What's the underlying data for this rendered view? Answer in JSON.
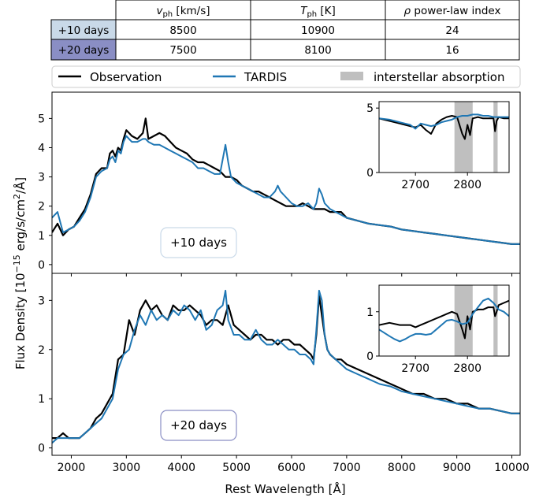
{
  "table": {
    "headers": [
      "",
      "v_ph [km/s]",
      "T_ph [K]",
      "ρ power-law index"
    ],
    "header_parts": [
      {
        "main": "v",
        "sub": "ph",
        "rest": " [km/s]"
      },
      {
        "main": "T",
        "sub": "ph",
        "rest": " [K]"
      },
      {
        "main": "ρ",
        "sub": "",
        "rest": " power-law index"
      }
    ],
    "rows": [
      {
        "label": "+10 days",
        "values": [
          "8500",
          "10900",
          "24"
        ],
        "color": "#c9d9e8"
      },
      {
        "label": "+20 days",
        "values": [
          "7500",
          "8100",
          "16"
        ],
        "color": "#8a8ec4"
      }
    ]
  },
  "legend": {
    "observation": "Observation",
    "tardis": "TARDIS",
    "absorption": "interstellar absorption"
  },
  "colors": {
    "observation": "#000000",
    "tardis": "#1f77b4",
    "absorption": "#bfbfbf"
  },
  "chart_data": [
    {
      "type": "line",
      "panel": "+10 days",
      "xlabel": "Rest Wavelength [Å]",
      "ylabel": "Flux Density [10^-15 erg/s/cm^2/Å]",
      "xlim": [
        1650,
        10150
      ],
      "ylim": [
        -0.3,
        5.9
      ],
      "xticks": [
        2000,
        3000,
        4000,
        5000,
        6000,
        7000,
        8000,
        9000,
        10000
      ],
      "yticks": [
        0,
        1,
        2,
        3,
        4,
        5
      ],
      "annotation": "+10 days",
      "series": [
        {
          "name": "Observation",
          "x": [
            1650,
            1750,
            1850,
            1950,
            2050,
            2150,
            2250,
            2350,
            2450,
            2550,
            2650,
            2700,
            2750,
            2800,
            2850,
            2900,
            2950,
            3000,
            3050,
            3100,
            3200,
            3300,
            3350,
            3400,
            3500,
            3600,
            3700,
            3800,
            3900,
            4000,
            4100,
            4200,
            4300,
            4400,
            4500,
            4600,
            4700,
            4800,
            4900,
            5000,
            5100,
            5200,
            5300,
            5400,
            5500,
            5600,
            5700,
            5800,
            5900,
            6000,
            6100,
            6200,
            6300,
            6400,
            6500,
            6600,
            6700,
            6800,
            6900,
            7000,
            7200,
            7400,
            7600,
            7800,
            8000,
            8200,
            8400,
            8600,
            8800,
            9000,
            9200,
            9400,
            9600,
            9800,
            10000,
            10150
          ],
          "y": [
            1.1,
            1.4,
            1.0,
            1.2,
            1.3,
            1.6,
            1.9,
            2.4,
            3.1,
            3.3,
            3.3,
            3.8,
            3.9,
            3.7,
            4.0,
            3.9,
            4.3,
            4.6,
            4.5,
            4.4,
            4.3,
            4.5,
            5.0,
            4.3,
            4.4,
            4.5,
            4.4,
            4.2,
            4.0,
            3.9,
            3.8,
            3.6,
            3.5,
            3.5,
            3.4,
            3.3,
            3.2,
            3.0,
            3.0,
            2.9,
            2.7,
            2.6,
            2.5,
            2.5,
            2.4,
            2.3,
            2.2,
            2.1,
            2.0,
            2.0,
            2.0,
            2.1,
            2.0,
            1.9,
            1.9,
            1.9,
            1.8,
            1.8,
            1.8,
            1.6,
            1.5,
            1.4,
            1.35,
            1.3,
            1.2,
            1.15,
            1.1,
            1.05,
            1.0,
            0.95,
            0.9,
            0.85,
            0.8,
            0.75,
            0.7,
            0.7
          ]
        },
        {
          "name": "TARDIS",
          "x": [
            1650,
            1750,
            1850,
            1950,
            2050,
            2150,
            2250,
            2350,
            2450,
            2550,
            2650,
            2700,
            2750,
            2800,
            2850,
            2900,
            2950,
            3000,
            3050,
            3100,
            3200,
            3300,
            3350,
            3400,
            3500,
            3600,
            3700,
            3800,
            3900,
            4000,
            4100,
            4200,
            4300,
            4400,
            4500,
            4600,
            4700,
            4750,
            4800,
            4850,
            4900,
            5000,
            5100,
            5200,
            5300,
            5400,
            5500,
            5600,
            5700,
            5750,
            5800,
            5900,
            6000,
            6100,
            6200,
            6300,
            6400,
            6450,
            6500,
            6550,
            6600,
            6700,
            6800,
            6900,
            7000,
            7200,
            7400,
            7600,
            7800,
            8000,
            8200,
            8400,
            8600,
            8800,
            9000,
            9200,
            9400,
            9600,
            9800,
            10000,
            10150
          ],
          "y": [
            1.6,
            1.8,
            1.1,
            1.2,
            1.3,
            1.5,
            1.8,
            2.3,
            3.0,
            3.2,
            3.3,
            3.6,
            3.7,
            3.5,
            3.9,
            3.8,
            4.2,
            4.4,
            4.3,
            4.2,
            4.2,
            4.3,
            4.3,
            4.2,
            4.1,
            4.1,
            4.0,
            3.9,
            3.8,
            3.7,
            3.6,
            3.5,
            3.3,
            3.3,
            3.2,
            3.1,
            3.1,
            3.6,
            4.1,
            3.5,
            3.0,
            2.8,
            2.7,
            2.6,
            2.5,
            2.4,
            2.3,
            2.3,
            2.5,
            2.7,
            2.5,
            2.3,
            2.1,
            2.0,
            2.0,
            2.1,
            1.9,
            2.1,
            2.6,
            2.4,
            2.1,
            1.9,
            1.8,
            1.7,
            1.6,
            1.5,
            1.4,
            1.35,
            1.3,
            1.2,
            1.15,
            1.1,
            1.05,
            1.0,
            0.95,
            0.9,
            0.85,
            0.8,
            0.75,
            0.7,
            0.7
          ]
        }
      ],
      "inset": {
        "xlim": [
          2630,
          2880
        ],
        "ylim": [
          0,
          5.5
        ],
        "xticks": [
          2700,
          2800
        ],
        "yticks": [
          0,
          5
        ],
        "absorption_bands": [
          [
            2775,
            2810
          ],
          [
            2850,
            2858
          ]
        ],
        "series": [
          {
            "name": "Observation",
            "x": [
              2630,
              2650,
              2670,
              2690,
              2700,
              2710,
              2720,
              2730,
              2740,
              2750,
              2760,
              2770,
              2780,
              2790,
              2795,
              2800,
              2805,
              2810,
              2820,
              2830,
              2840,
              2850,
              2853,
              2856,
              2860,
              2870,
              2880
            ],
            "y": [
              4.2,
              4.0,
              3.8,
              3.6,
              3.5,
              3.7,
              3.3,
              3.0,
              3.8,
              4.1,
              4.3,
              4.4,
              4.3,
              3.0,
              2.6,
              3.7,
              2.9,
              4.2,
              4.3,
              4.2,
              4.2,
              4.2,
              3.2,
              4.0,
              4.3,
              4.2,
              4.2
            ]
          },
          {
            "name": "TARDIS",
            "x": [
              2630,
              2650,
              2670,
              2690,
              2700,
              2710,
              2720,
              2730,
              2740,
              2750,
              2760,
              2770,
              2780,
              2790,
              2800,
              2810,
              2820,
              2830,
              2840,
              2850,
              2860,
              2870,
              2880
            ],
            "y": [
              4.2,
              4.1,
              3.9,
              3.7,
              3.4,
              3.8,
              3.7,
              3.6,
              3.7,
              3.9,
              4.0,
              4.1,
              4.3,
              4.4,
              4.4,
              4.5,
              4.5,
              4.4,
              4.4,
              4.3,
              4.3,
              4.3,
              4.3
            ]
          }
        ]
      }
    },
    {
      "type": "line",
      "panel": "+20 days",
      "xlabel": "Rest Wavelength [Å]",
      "ylabel": "Flux Density [10^-15 erg/s/cm^2/Å]",
      "xlim": [
        1650,
        10150
      ],
      "ylim": [
        -0.15,
        3.55
      ],
      "xticks": [
        2000,
        3000,
        4000,
        5000,
        6000,
        7000,
        8000,
        9000,
        10000
      ],
      "yticks": [
        0,
        1,
        2,
        3
      ],
      "annotation": "+20 days",
      "series": [
        {
          "name": "Observation",
          "x": [
            1650,
            1750,
            1850,
            1950,
            2050,
            2150,
            2250,
            2350,
            2450,
            2550,
            2650,
            2750,
            2850,
            2950,
            3050,
            3150,
            3250,
            3350,
            3450,
            3550,
            3650,
            3750,
            3850,
            3950,
            4050,
            4150,
            4250,
            4350,
            4450,
            4550,
            4650,
            4750,
            4850,
            4950,
            5050,
            5150,
            5250,
            5350,
            5450,
            5550,
            5650,
            5750,
            5850,
            5950,
            6050,
            6150,
            6250,
            6350,
            6400,
            6450,
            6500,
            6550,
            6600,
            6650,
            6700,
            6800,
            6900,
            7000,
            7200,
            7400,
            7600,
            7800,
            8000,
            8200,
            8400,
            8600,
            8800,
            9000,
            9200,
            9400,
            9600,
            9800,
            10000,
            10150
          ],
          "y": [
            0.2,
            0.2,
            0.3,
            0.2,
            0.2,
            0.2,
            0.3,
            0.4,
            0.6,
            0.7,
            0.9,
            1.1,
            1.8,
            1.9,
            2.6,
            2.3,
            2.8,
            3.0,
            2.8,
            2.9,
            2.7,
            2.6,
            2.9,
            2.8,
            2.8,
            2.9,
            2.8,
            2.7,
            2.5,
            2.6,
            2.6,
            2.5,
            2.9,
            2.5,
            2.4,
            2.3,
            2.2,
            2.3,
            2.3,
            2.2,
            2.2,
            2.1,
            2.2,
            2.2,
            2.1,
            2.1,
            2.0,
            1.9,
            1.8,
            2.3,
            3.1,
            2.7,
            2.3,
            2.0,
            1.9,
            1.8,
            1.8,
            1.7,
            1.6,
            1.5,
            1.4,
            1.3,
            1.2,
            1.1,
            1.1,
            1.0,
            1.0,
            0.9,
            0.9,
            0.8,
            0.8,
            0.75,
            0.7,
            0.7
          ]
        },
        {
          "name": "TARDIS",
          "x": [
            1650,
            1750,
            1850,
            1950,
            2050,
            2150,
            2250,
            2350,
            2450,
            2550,
            2650,
            2750,
            2850,
            2950,
            3050,
            3150,
            3250,
            3350,
            3450,
            3550,
            3650,
            3750,
            3850,
            3950,
            4050,
            4150,
            4250,
            4350,
            4450,
            4550,
            4650,
            4750,
            4800,
            4850,
            4950,
            5050,
            5150,
            5250,
            5350,
            5450,
            5550,
            5650,
            5750,
            5850,
            5950,
            6050,
            6150,
            6250,
            6350,
            6400,
            6450,
            6500,
            6550,
            6600,
            6650,
            6700,
            6800,
            6900,
            7000,
            7200,
            7400,
            7600,
            7800,
            8000,
            8200,
            8400,
            8600,
            8800,
            9000,
            9200,
            9400,
            9600,
            9800,
            10000,
            10150
          ],
          "y": [
            0.1,
            0.2,
            0.2,
            0.2,
            0.2,
            0.2,
            0.3,
            0.4,
            0.5,
            0.6,
            0.8,
            1.0,
            1.6,
            1.9,
            2.0,
            2.4,
            2.7,
            2.5,
            2.8,
            2.6,
            2.7,
            2.6,
            2.8,
            2.7,
            2.9,
            2.8,
            2.6,
            2.8,
            2.4,
            2.5,
            2.8,
            2.9,
            3.2,
            2.6,
            2.3,
            2.3,
            2.2,
            2.2,
            2.4,
            2.2,
            2.1,
            2.1,
            2.2,
            2.1,
            2.0,
            2.0,
            1.9,
            1.9,
            1.8,
            1.7,
            2.4,
            3.2,
            3.0,
            2.3,
            2.0,
            1.9,
            1.8,
            1.7,
            1.6,
            1.5,
            1.4,
            1.3,
            1.25,
            1.15,
            1.1,
            1.05,
            1.0,
            0.95,
            0.9,
            0.85,
            0.8,
            0.8,
            0.75,
            0.7,
            0.7
          ]
        }
      ],
      "inset": {
        "xlim": [
          2630,
          2880
        ],
        "ylim": [
          0,
          1.6
        ],
        "xticks": [
          2700,
          2800
        ],
        "yticks": [
          0,
          1
        ],
        "absorption_bands": [
          [
            2775,
            2810
          ],
          [
            2850,
            2858
          ]
        ],
        "series": [
          {
            "name": "Observation",
            "x": [
              2630,
              2650,
              2670,
              2690,
              2700,
              2710,
              2720,
              2730,
              2740,
              2750,
              2760,
              2770,
              2780,
              2790,
              2795,
              2800,
              2805,
              2810,
              2820,
              2830,
              2840,
              2850,
              2853,
              2856,
              2860,
              2870,
              2880
            ],
            "y": [
              0.7,
              0.75,
              0.7,
              0.7,
              0.65,
              0.7,
              0.75,
              0.8,
              0.85,
              0.9,
              0.95,
              1.0,
              0.95,
              0.6,
              0.4,
              0.9,
              0.6,
              1.0,
              1.05,
              1.05,
              1.1,
              1.1,
              0.9,
              1.0,
              1.15,
              1.2,
              1.25
            ]
          },
          {
            "name": "TARDIS",
            "x": [
              2630,
              2650,
              2660,
              2670,
              2680,
              2690,
              2700,
              2710,
              2720,
              2730,
              2740,
              2750,
              2760,
              2770,
              2780,
              2790,
              2800,
              2810,
              2820,
              2830,
              2840,
              2850,
              2860,
              2870,
              2880
            ],
            "y": [
              0.6,
              0.45,
              0.38,
              0.33,
              0.38,
              0.45,
              0.5,
              0.5,
              0.48,
              0.5,
              0.6,
              0.7,
              0.8,
              0.82,
              0.78,
              0.72,
              0.75,
              0.95,
              1.1,
              1.25,
              1.3,
              1.2,
              1.05,
              1.0,
              0.9
            ]
          }
        ]
      }
    }
  ]
}
